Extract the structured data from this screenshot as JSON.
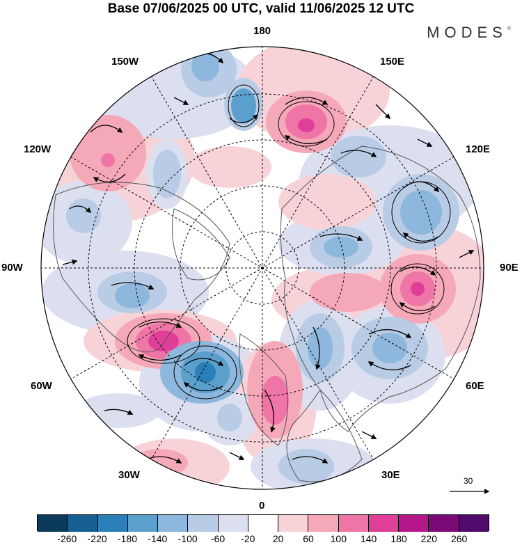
{
  "title": "Base 07/06/2025 00 UTC, valid 11/06/2025 12 UTC",
  "brand": "MODES",
  "brand_mark": "©",
  "longitude_labels": {
    "n180": "180",
    "e150": "150E",
    "e120": "120E",
    "e90": "90E",
    "e60": "60E",
    "e30": "30E",
    "s0": "0",
    "w30": "30W",
    "w60": "60W",
    "w90": "90W",
    "w120": "120W",
    "w150": "150W"
  },
  "reference_vector": "30",
  "colorbar": {
    "ticks": [
      "-260",
      "-220",
      "-180",
      "-140",
      "-100",
      "-60",
      "-20",
      "20",
      "60",
      "100",
      "140",
      "180",
      "220",
      "260"
    ],
    "colors": [
      "#0b3a5a",
      "#155f92",
      "#2a7fb8",
      "#5b9fcc",
      "#8db7dc",
      "#b9cce6",
      "#dcdff0",
      "#ffffff",
      "#f7d3d8",
      "#f4a8b8",
      "#ee75a6",
      "#df3f98",
      "#b5168a",
      "#7c0a76",
      "#4f0a6c"
    ]
  },
  "map_colors": {
    "neg_weak": "#dcdff0",
    "neg_mid": "#b9cce6",
    "neg_strong": "#8db7dc",
    "neg_core": "#5b9fcc",
    "neg_deep": "#2a7fb8",
    "pos_weak": "#f7d3d8",
    "pos_mid": "#f4a8b8",
    "pos_strong": "#ee75a6",
    "pos_core": "#df3f98",
    "land_line": "#555555",
    "wind_arrow": "#000000"
  },
  "anomaly_centers": [
    {
      "sign": "negative",
      "near": "150W"
    },
    {
      "sign": "positive",
      "near": "170E"
    },
    {
      "sign": "positive",
      "near": "120W"
    },
    {
      "sign": "negative",
      "near": "130E"
    },
    {
      "sign": "negative",
      "near": "110E"
    },
    {
      "sign": "positive",
      "near": "90E"
    },
    {
      "sign": "negative",
      "near": "100W"
    },
    {
      "sign": "positive",
      "near": "45W"
    },
    {
      "sign": "negative",
      "near": "35W"
    },
    {
      "sign": "positive",
      "near": "5E"
    },
    {
      "sign": "negative",
      "near": "30E"
    },
    {
      "sign": "negative",
      "near": "60E"
    }
  ]
}
